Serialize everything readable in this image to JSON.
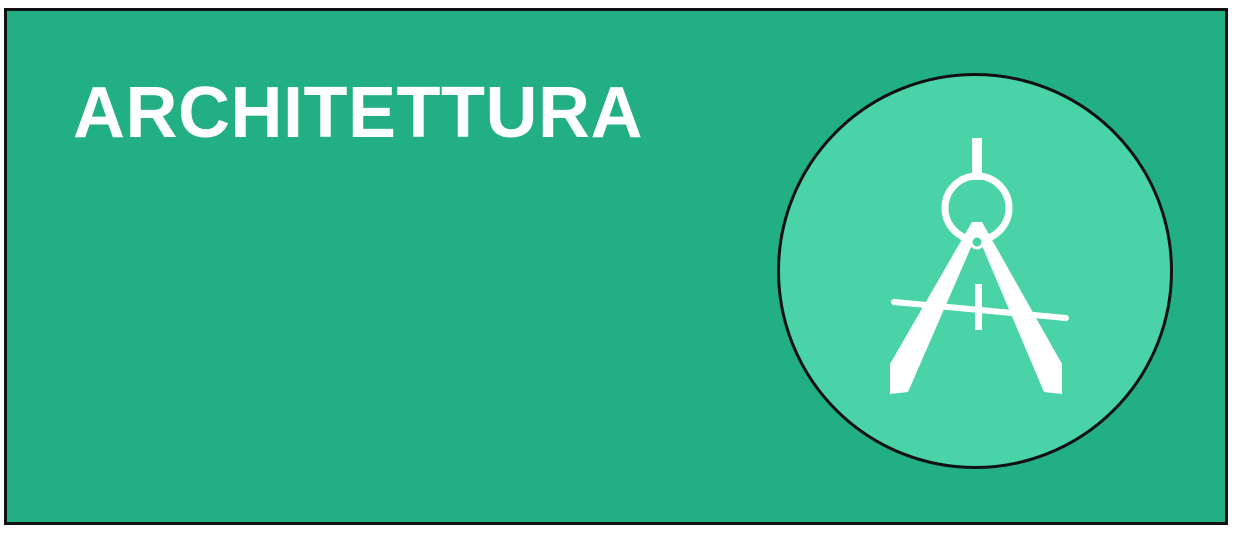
{
  "banner": {
    "title": "ARCHITETTURA",
    "icon": "drafting-compass-icon"
  },
  "colors": {
    "background": "#23AF84",
    "circle": "#4BD3A8",
    "text": "#FFFFFF",
    "icon": "#FFFFFF",
    "border": "#111111"
  }
}
